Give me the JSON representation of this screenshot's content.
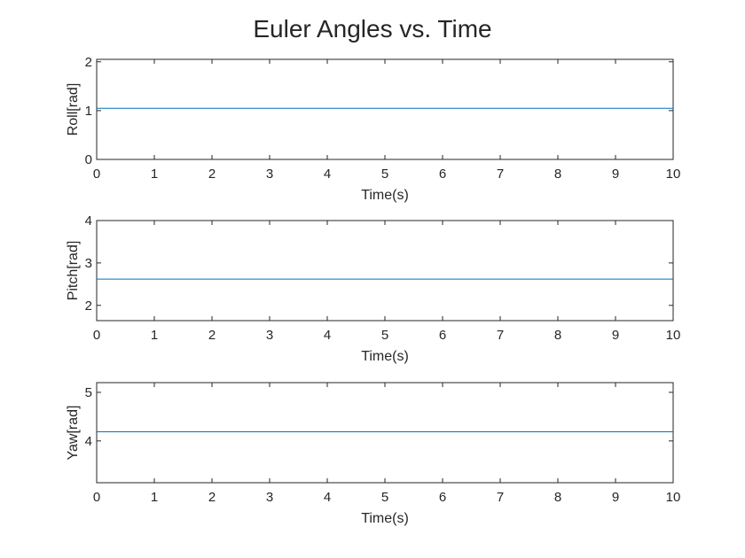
{
  "title": "Euler Angles vs. Time",
  "colors": {
    "series": "#0072BD",
    "axis": "#262626",
    "background": "#ffffff"
  },
  "chart_data": [
    {
      "type": "line",
      "xlabel": "Time(s)",
      "ylabel": "Roll[rad]",
      "xlim": [
        0,
        10
      ],
      "ylim": [
        0,
        2.05
      ],
      "xticks": [
        0,
        1,
        2,
        3,
        4,
        5,
        6,
        7,
        8,
        9,
        10
      ],
      "yticks": [
        0,
        1,
        2
      ],
      "grid": false,
      "series": [
        {
          "name": "Roll",
          "x": [
            0,
            10
          ],
          "y": [
            1.047,
            1.047
          ]
        }
      ]
    },
    {
      "type": "line",
      "xlabel": "Time(s)",
      "ylabel": "Pitch[rad]",
      "xlim": [
        0,
        10
      ],
      "ylim": [
        1.64,
        4
      ],
      "xticks": [
        0,
        1,
        2,
        3,
        4,
        5,
        6,
        7,
        8,
        9,
        10
      ],
      "yticks": [
        2,
        3,
        4
      ],
      "grid": false,
      "series": [
        {
          "name": "Pitch",
          "x": [
            0,
            10
          ],
          "y": [
            2.618,
            2.618
          ]
        }
      ]
    },
    {
      "type": "line",
      "xlabel": "Time(s)",
      "ylabel": "Yaw[rad]",
      "xlim": [
        0,
        10
      ],
      "ylim": [
        3.14,
        5.2
      ],
      "xticks": [
        0,
        1,
        2,
        3,
        4,
        5,
        6,
        7,
        8,
        9,
        10
      ],
      "yticks": [
        4,
        5
      ],
      "grid": false,
      "series": [
        {
          "name": "Yaw",
          "x": [
            0,
            10
          ],
          "y": [
            4.189,
            4.189
          ]
        }
      ]
    }
  ]
}
